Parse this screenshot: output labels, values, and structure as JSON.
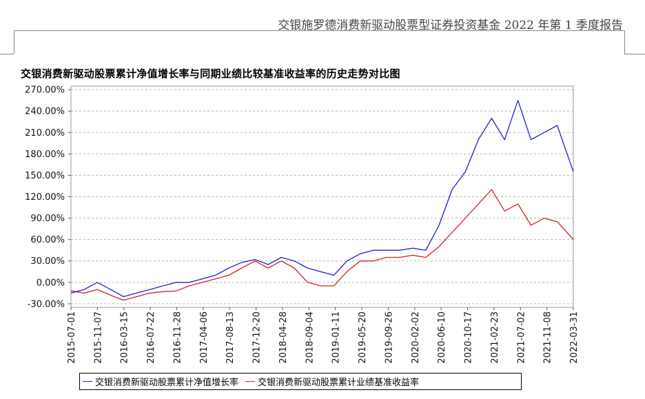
{
  "header": {
    "report_title": "交银施罗德消费新驱动股票型证券投资基金 2022 年第 1 季度报告"
  },
  "chart_data": {
    "type": "line",
    "title": "交银消费新驱动股票累计净值增长率与同期业绩比较基准收益率的历史走势对比图",
    "xlabel": "",
    "ylabel": "",
    "x_tick_labels": [
      "2015-07-01",
      "2015-11-07",
      "2016-03-15",
      "2016-07-22",
      "2016-11-28",
      "2017-04-06",
      "2017-08-13",
      "2017-12-20",
      "2018-04-28",
      "2018-09-04",
      "2019-01-11",
      "2019-05-20",
      "2019-09-26",
      "2020-02-02",
      "2020-06-10",
      "2020-10-17",
      "2021-02-23",
      "2021-07-02",
      "2021-11-08",
      "2022-03-31"
    ],
    "y_tick_labels": [
      "-30.00%",
      "0.00%",
      "30.00%",
      "60.00%",
      "90.00%",
      "120.00%",
      "150.00%",
      "180.00%",
      "210.00%",
      "240.00%",
      "270.00%"
    ],
    "ylim": [
      -35,
      275
    ],
    "y_ticks": [
      -30,
      0,
      30,
      60,
      90,
      120,
      150,
      180,
      210,
      240,
      270
    ],
    "grid": true,
    "legend_position": "bottom",
    "colors": {
      "fund": "#1f1fd0",
      "benchmark": "#d42020"
    },
    "x": [
      "2015-07-01",
      "2015-09-04",
      "2015-11-07",
      "2016-01-11",
      "2016-03-15",
      "2016-05-18",
      "2016-07-22",
      "2016-09-24",
      "2016-11-28",
      "2017-01-31",
      "2017-04-06",
      "2017-06-09",
      "2017-08-13",
      "2017-10-16",
      "2017-12-20",
      "2018-02-22",
      "2018-04-28",
      "2018-07-01",
      "2018-09-04",
      "2018-11-07",
      "2019-01-11",
      "2019-03-16",
      "2019-05-20",
      "2019-07-23",
      "2019-09-26",
      "2019-11-29",
      "2020-02-02",
      "2020-04-06",
      "2020-06-10",
      "2020-08-13",
      "2020-10-17",
      "2020-12-20",
      "2021-02-23",
      "2021-04-28",
      "2021-07-02",
      "2021-09-04",
      "2021-11-08",
      "2022-01-11",
      "2022-03-31"
    ],
    "series": [
      {
        "name": "交银消费新驱动股票累计净值增长率",
        "values": [
          -15,
          -10,
          0,
          -10,
          -20,
          -15,
          -10,
          -5,
          0,
          0,
          5,
          10,
          20,
          28,
          32,
          25,
          35,
          30,
          20,
          15,
          10,
          30,
          40,
          45,
          45,
          45,
          48,
          45,
          80,
          130,
          155,
          200,
          230,
          200,
          255,
          200,
          210,
          220,
          155
        ]
      },
      {
        "name": "交银消费新驱动股票累计业绩基准收益率",
        "values": [
          -12,
          -15,
          -10,
          -18,
          -25,
          -20,
          -15,
          -13,
          -12,
          -5,
          0,
          5,
          10,
          20,
          30,
          20,
          30,
          20,
          0,
          -5,
          -5,
          15,
          30,
          30,
          35,
          35,
          38,
          35,
          50,
          70,
          90,
          110,
          130,
          100,
          110,
          80,
          90,
          85,
          60
        ]
      }
    ]
  }
}
